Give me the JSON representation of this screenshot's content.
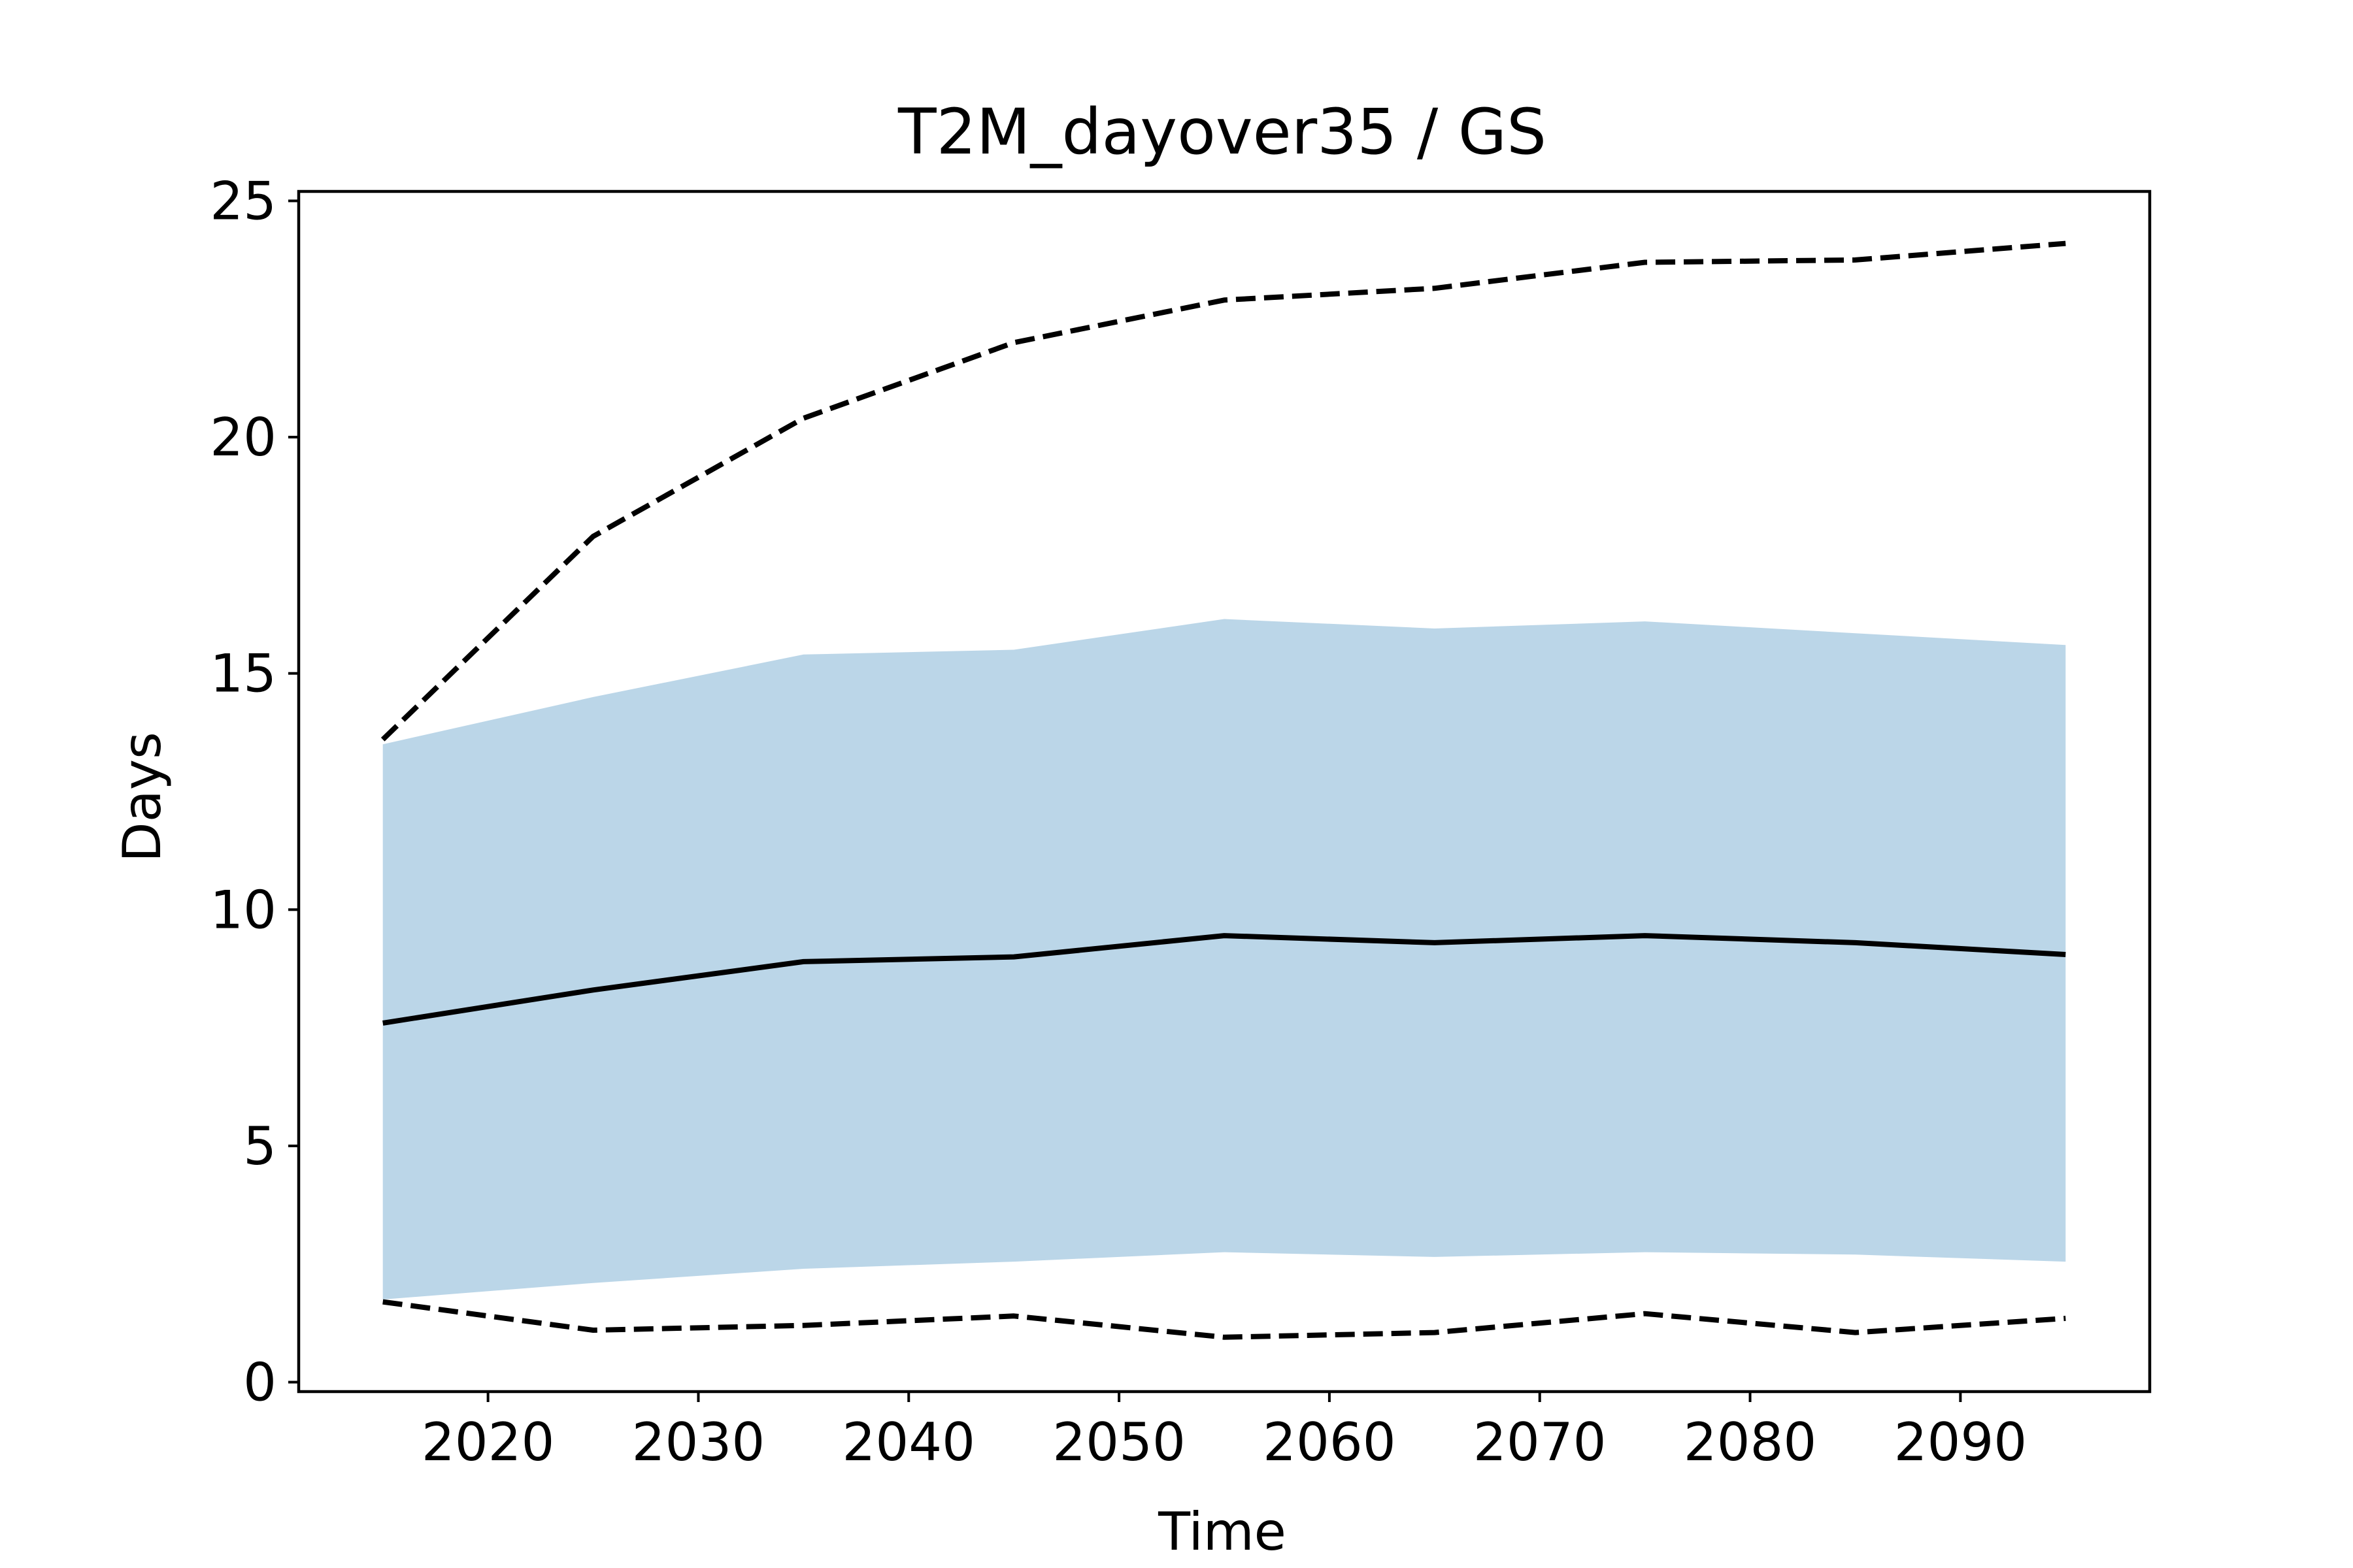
{
  "chart_data": {
    "type": "line",
    "title": "T2M_dayover35 / GS",
    "xlabel": "Time",
    "ylabel": "Days",
    "xlim": [
      2011,
      2099
    ],
    "ylim": [
      -0.2,
      25.2
    ],
    "xticks": [
      2020,
      2030,
      2040,
      2050,
      2060,
      2070,
      2080,
      2090
    ],
    "yticks": [
      0,
      5,
      10,
      15,
      20,
      25
    ],
    "grid": false,
    "x": [
      2015,
      2025,
      2035,
      2045,
      2055,
      2065,
      2075,
      2085,
      2095
    ],
    "series": [
      {
        "role": "mean",
        "style": "solid",
        "values": [
          7.6,
          8.3,
          8.9,
          9.0,
          9.45,
          9.3,
          9.45,
          9.3,
          9.05
        ]
      },
      {
        "role": "max",
        "style": "dashed",
        "values": [
          13.6,
          17.9,
          20.4,
          22.0,
          22.9,
          23.15,
          23.7,
          23.75,
          24.1
        ]
      },
      {
        "role": "min",
        "style": "dashed",
        "values": [
          1.7,
          1.1,
          1.2,
          1.4,
          0.95,
          1.05,
          1.45,
          1.05,
          1.35
        ]
      }
    ],
    "band": {
      "color": "#bbd6e8",
      "upper": [
        13.5,
        14.5,
        15.4,
        15.5,
        16.15,
        15.95,
        16.1,
        15.85,
        15.6
      ],
      "lower": [
        1.75,
        2.1,
        2.4,
        2.55,
        2.75,
        2.65,
        2.75,
        2.7,
        2.55
      ]
    },
    "colors": {
      "line": "#000000",
      "band": "#bbd6e8"
    }
  }
}
